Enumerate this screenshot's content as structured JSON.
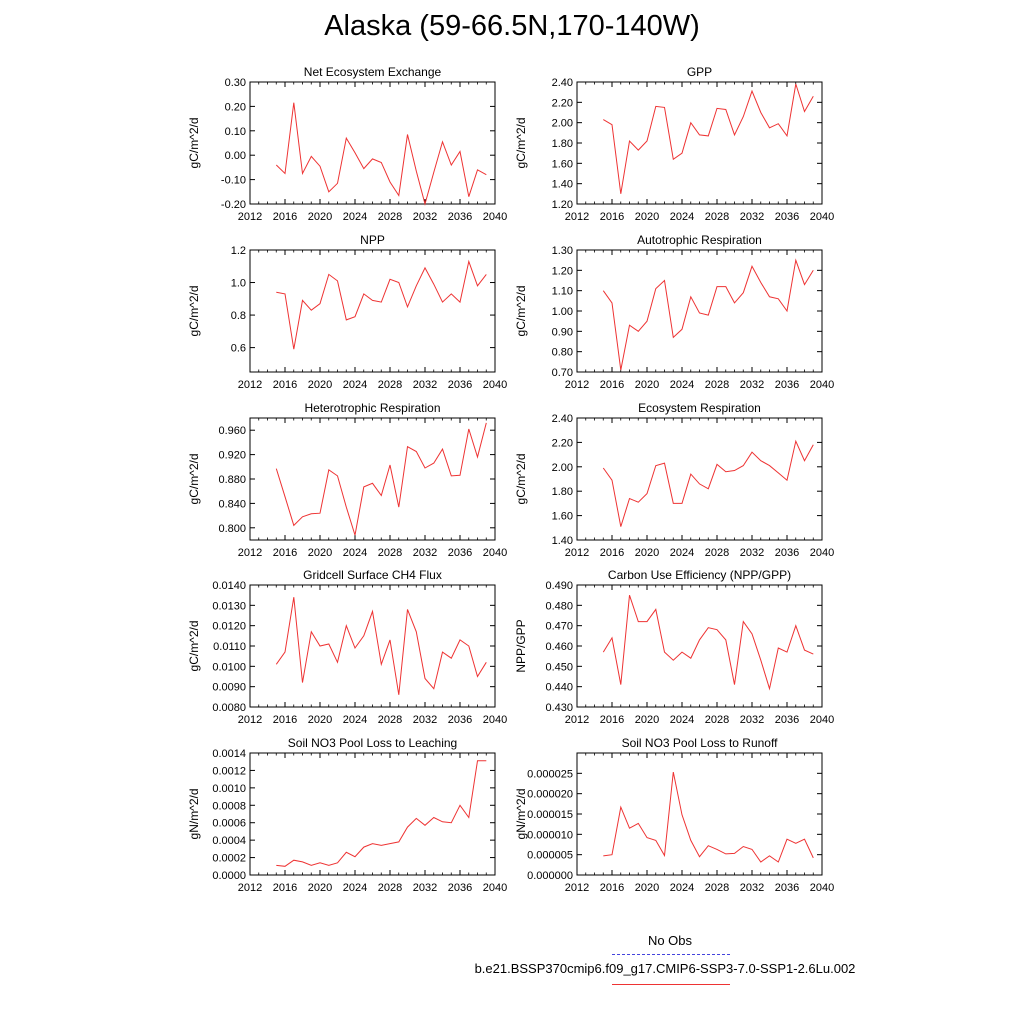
{
  "title": "Alaska (59-66.5N,170-140W)",
  "legend": {
    "obs_label": "No Obs",
    "case_label": "b.e21.BSSP370cmip6.f09_g17.CMIP6-SSP3-7.0-SSP1-2.6Lu.002",
    "obs_color": "#4444dd",
    "case_color": "#ee3333"
  },
  "chart_data": [
    {
      "type": "line",
      "title": "Net Ecosystem Exchange",
      "ylabel": "gC/m^2/d",
      "xlim": [
        2012,
        2040
      ],
      "xticks": [
        "2012",
        "2016",
        "2020",
        "2024",
        "2028",
        "2032",
        "2036",
        "2040"
      ],
      "ylim": [
        -0.2,
        0.3
      ],
      "yticks": [
        "-0.20",
        "-0.10",
        "0.00",
        "0.10",
        "0.20",
        "0.30"
      ],
      "ytick_values": [
        -0.2,
        -0.1,
        0.0,
        0.1,
        0.2,
        0.3
      ],
      "x": [
        2015,
        2016,
        2017,
        2018,
        2019,
        2020,
        2021,
        2022,
        2023,
        2024,
        2025,
        2026,
        2027,
        2028,
        2029,
        2030,
        2031,
        2032,
        2033,
        2034,
        2035,
        2036,
        2037,
        2038,
        2039
      ],
      "values": [
        -0.04,
        -0.075,
        0.215,
        -0.075,
        -0.005,
        -0.045,
        -0.15,
        -0.115,
        0.07,
        0.01,
        -0.055,
        -0.015,
        -0.03,
        -0.11,
        -0.165,
        0.085,
        -0.065,
        -0.2,
        -0.07,
        0.055,
        -0.04,
        0.015,
        -0.17,
        -0.06,
        -0.08
      ],
      "color": "#ee3333"
    },
    {
      "type": "line",
      "title": "GPP",
      "ylabel": "gC/m^2/d",
      "xlim": [
        2012,
        2040
      ],
      "xticks": [
        "2012",
        "2016",
        "2020",
        "2024",
        "2028",
        "2032",
        "2036",
        "2040"
      ],
      "ylim": [
        1.2,
        2.4
      ],
      "yticks": [
        "1.20",
        "1.40",
        "1.60",
        "1.80",
        "2.00",
        "2.20",
        "2.40"
      ],
      "ytick_values": [
        1.2,
        1.4,
        1.6,
        1.8,
        2.0,
        2.2,
        2.4
      ],
      "x": [
        2015,
        2016,
        2017,
        2018,
        2019,
        2020,
        2021,
        2022,
        2023,
        2024,
        2025,
        2026,
        2027,
        2028,
        2029,
        2030,
        2031,
        2032,
        2033,
        2034,
        2035,
        2036,
        2037,
        2038,
        2039
      ],
      "values": [
        2.03,
        1.98,
        1.3,
        1.82,
        1.73,
        1.82,
        2.16,
        2.15,
        1.64,
        1.7,
        2.0,
        1.88,
        1.87,
        2.14,
        2.13,
        1.88,
        2.06,
        2.31,
        2.1,
        1.95,
        1.99,
        1.87,
        2.38,
        2.11,
        2.26
      ],
      "color": "#ee3333"
    },
    {
      "type": "line",
      "title": "NPP",
      "ylabel": "gC/m^2/d",
      "xlim": [
        2012,
        2040
      ],
      "xticks": [
        "2012",
        "2016",
        "2020",
        "2024",
        "2028",
        "2032",
        "2036",
        "2040"
      ],
      "ylim": [
        0.45,
        1.2
      ],
      "yticks": [
        "0.6",
        "0.8",
        "1.0",
        "1.2"
      ],
      "ytick_values": [
        0.6,
        0.8,
        1.0,
        1.2
      ],
      "x": [
        2015,
        2016,
        2017,
        2018,
        2019,
        2020,
        2021,
        2022,
        2023,
        2024,
        2025,
        2026,
        2027,
        2028,
        2029,
        2030,
        2031,
        2032,
        2033,
        2034,
        2035,
        2036,
        2037,
        2038,
        2039
      ],
      "values": [
        0.94,
        0.93,
        0.59,
        0.89,
        0.83,
        0.87,
        1.05,
        1.01,
        0.77,
        0.79,
        0.93,
        0.89,
        0.88,
        1.02,
        1.0,
        0.85,
        0.98,
        1.09,
        0.99,
        0.88,
        0.93,
        0.88,
        1.13,
        0.98,
        1.05
      ],
      "color": "#ee3333"
    },
    {
      "type": "line",
      "title": "Autotrophic Respiration",
      "ylabel": "gC/m^2/d",
      "xlim": [
        2012,
        2040
      ],
      "xticks": [
        "2012",
        "2016",
        "2020",
        "2024",
        "2028",
        "2032",
        "2036",
        "2040"
      ],
      "ylim": [
        0.7,
        1.3
      ],
      "yticks": [
        "0.70",
        "0.80",
        "0.90",
        "1.00",
        "1.10",
        "1.20",
        "1.30"
      ],
      "ytick_values": [
        0.7,
        0.8,
        0.9,
        1.0,
        1.1,
        1.2,
        1.3
      ],
      "x": [
        2015,
        2016,
        2017,
        2018,
        2019,
        2020,
        2021,
        2022,
        2023,
        2024,
        2025,
        2026,
        2027,
        2028,
        2029,
        2030,
        2031,
        2032,
        2033,
        2034,
        2035,
        2036,
        2037,
        2038,
        2039
      ],
      "values": [
        1.1,
        1.04,
        0.71,
        0.93,
        0.9,
        0.95,
        1.11,
        1.15,
        0.87,
        0.91,
        1.07,
        0.99,
        0.98,
        1.12,
        1.12,
        1.04,
        1.09,
        1.22,
        1.14,
        1.07,
        1.06,
        1.0,
        1.25,
        1.13,
        1.2
      ],
      "color": "#ee3333"
    },
    {
      "type": "line",
      "title": "Heterotrophic Respiration",
      "ylabel": "gC/m^2/d",
      "xlim": [
        2012,
        2040
      ],
      "xticks": [
        "2012",
        "2016",
        "2020",
        "2024",
        "2028",
        "2032",
        "2036",
        "2040"
      ],
      "ylim": [
        0.78,
        0.98
      ],
      "yticks": [
        "0.800",
        "0.840",
        "0.880",
        "0.920",
        "0.960"
      ],
      "ytick_values": [
        0.8,
        0.84,
        0.88,
        0.92,
        0.96
      ],
      "x": [
        2015,
        2016,
        2017,
        2018,
        2019,
        2020,
        2021,
        2022,
        2023,
        2024,
        2025,
        2026,
        2027,
        2028,
        2029,
        2030,
        2031,
        2032,
        2033,
        2034,
        2035,
        2036,
        2037,
        2038,
        2039
      ],
      "values": [
        0.897,
        0.851,
        0.804,
        0.818,
        0.823,
        0.824,
        0.895,
        0.885,
        0.834,
        0.788,
        0.867,
        0.873,
        0.853,
        0.903,
        0.834,
        0.933,
        0.925,
        0.898,
        0.906,
        0.929,
        0.885,
        0.886,
        0.962,
        0.916,
        0.972
      ],
      "color": "#ee3333"
    },
    {
      "type": "line",
      "title": "Ecosystem Respiration",
      "ylabel": "gC/m^2/d",
      "xlim": [
        2012,
        2040
      ],
      "xticks": [
        "2012",
        "2016",
        "2020",
        "2024",
        "2028",
        "2032",
        "2036",
        "2040"
      ],
      "ylim": [
        1.4,
        2.4
      ],
      "yticks": [
        "1.40",
        "1.60",
        "1.80",
        "2.00",
        "2.20",
        "2.40"
      ],
      "ytick_values": [
        1.4,
        1.6,
        1.8,
        2.0,
        2.2,
        2.4
      ],
      "x": [
        2015,
        2016,
        2017,
        2018,
        2019,
        2020,
        2021,
        2022,
        2023,
        2024,
        2025,
        2026,
        2027,
        2028,
        2029,
        2030,
        2031,
        2032,
        2033,
        2034,
        2035,
        2036,
        2037,
        2038,
        2039
      ],
      "values": [
        1.99,
        1.89,
        1.51,
        1.74,
        1.71,
        1.78,
        2.01,
        2.03,
        1.7,
        1.7,
        1.94,
        1.86,
        1.82,
        2.02,
        1.96,
        1.97,
        2.01,
        2.12,
        2.05,
        2.01,
        1.95,
        1.89,
        2.21,
        2.05,
        2.18
      ],
      "color": "#ee3333"
    },
    {
      "type": "line",
      "title": "Gridcell Surface CH4 Flux",
      "ylabel": "gC/m^2/d",
      "xlim": [
        2012,
        2040
      ],
      "xticks": [
        "2012",
        "2016",
        "2020",
        "2024",
        "2028",
        "2032",
        "2036",
        "2040"
      ],
      "ylim": [
        0.008,
        0.014
      ],
      "yticks": [
        "0.0080",
        "0.0090",
        "0.0100",
        "0.0110",
        "0.0120",
        "0.0130",
        "0.0140"
      ],
      "ytick_values": [
        0.008,
        0.009,
        0.01,
        0.011,
        0.012,
        0.013,
        0.014
      ],
      "x": [
        2015,
        2016,
        2017,
        2018,
        2019,
        2020,
        2021,
        2022,
        2023,
        2024,
        2025,
        2026,
        2027,
        2028,
        2029,
        2030,
        2031,
        2032,
        2033,
        2034,
        2035,
        2036,
        2037,
        2038,
        2039
      ],
      "values": [
        0.0101,
        0.0107,
        0.0134,
        0.0092,
        0.0117,
        0.011,
        0.0111,
        0.0102,
        0.012,
        0.0109,
        0.0115,
        0.0127,
        0.0101,
        0.0113,
        0.0086,
        0.0128,
        0.0117,
        0.0094,
        0.0089,
        0.0107,
        0.0104,
        0.0113,
        0.011,
        0.0095,
        0.0102
      ],
      "color": "#ee3333"
    },
    {
      "type": "line",
      "title": "Carbon Use Efficiency (NPP/GPP)",
      "ylabel": "NPP/GPP",
      "xlim": [
        2012,
        2040
      ],
      "xticks": [
        "2012",
        "2016",
        "2020",
        "2024",
        "2028",
        "2032",
        "2036",
        "2040"
      ],
      "ylim": [
        0.43,
        0.49
      ],
      "yticks": [
        "0.430",
        "0.440",
        "0.450",
        "0.460",
        "0.470",
        "0.480",
        "0.490"
      ],
      "ytick_values": [
        0.43,
        0.44,
        0.45,
        0.46,
        0.47,
        0.48,
        0.49
      ],
      "x": [
        2015,
        2016,
        2017,
        2018,
        2019,
        2020,
        2021,
        2022,
        2023,
        2024,
        2025,
        2026,
        2027,
        2028,
        2029,
        2030,
        2031,
        2032,
        2033,
        2034,
        2035,
        2036,
        2037,
        2038,
        2039
      ],
      "values": [
        0.457,
        0.464,
        0.441,
        0.485,
        0.472,
        0.472,
        0.478,
        0.457,
        0.453,
        0.457,
        0.454,
        0.463,
        0.469,
        0.468,
        0.463,
        0.441,
        0.472,
        0.466,
        0.453,
        0.439,
        0.459,
        0.457,
        0.47,
        0.458,
        0.456
      ],
      "color": "#ee3333"
    },
    {
      "type": "line",
      "title": "Soil NO3 Pool Loss to Leaching",
      "ylabel": "gN/m^2/d",
      "xlim": [
        2012,
        2040
      ],
      "xticks": [
        "2012",
        "2016",
        "2020",
        "2024",
        "2028",
        "2032",
        "2036",
        "2040"
      ],
      "ylim": [
        0,
        0.0014
      ],
      "yticks": [
        "0.0000",
        "0.0002",
        "0.0004",
        "0.0006",
        "0.0008",
        "0.0010",
        "0.0012",
        "0.0014"
      ],
      "ytick_values": [
        0,
        0.0002,
        0.0004,
        0.0006,
        0.0008,
        0.001,
        0.0012,
        0.0014
      ],
      "x": [
        2015,
        2016,
        2017,
        2018,
        2019,
        2020,
        2021,
        2022,
        2023,
        2024,
        2025,
        2026,
        2027,
        2028,
        2029,
        2030,
        2031,
        2032,
        2033,
        2034,
        2035,
        2036,
        2037,
        2038,
        2039
      ],
      "values": [
        0.00011,
        0.0001,
        0.00017,
        0.00015,
        0.00011,
        0.00014,
        0.00011,
        0.00014,
        0.00026,
        0.00021,
        0.00032,
        0.00036,
        0.00034,
        0.00036,
        0.00038,
        0.00055,
        0.00065,
        0.00057,
        0.00066,
        0.00061,
        0.0006,
        0.0008,
        0.00066,
        0.00131,
        0.00131
      ],
      "color": "#ee3333"
    },
    {
      "type": "line",
      "title": "Soil NO3 Pool Loss to Runoff",
      "ylabel": "gN/m^2/d",
      "xlim": [
        2012,
        2040
      ],
      "xticks": [
        "2012",
        "2016",
        "2020",
        "2024",
        "2028",
        "2032",
        "2036",
        "2040"
      ],
      "ylim": [
        0,
        3e-05
      ],
      "yticks": [
        "0.000000",
        "0.000005",
        "0.000010",
        "0.000015",
        "0.000020",
        "0.000025"
      ],
      "ytick_values": [
        0,
        5e-06,
        1e-05,
        1.5e-05,
        2e-05,
        2.5e-05
      ],
      "x": [
        2015,
        2016,
        2017,
        2018,
        2019,
        2020,
        2021,
        2022,
        2023,
        2024,
        2025,
        2026,
        2027,
        2028,
        2029,
        2030,
        2031,
        2032,
        2033,
        2034,
        2035,
        2036,
        2037,
        2038,
        2039
      ],
      "values": [
        4.7e-06,
        5e-06,
        1.67e-05,
        1.15e-05,
        1.27e-05,
        9.2e-06,
        8.5e-06,
        4.8e-06,
        2.53e-05,
        1.48e-05,
        8.5e-06,
        4.5e-06,
        7.2e-06,
        6.3e-06,
        5.2e-06,
        5.3e-06,
        7e-06,
        6.3e-06,
        3.2e-06,
        4.7e-06,
        3.2e-06,
        8.8e-06,
        7.8e-06,
        8.8e-06,
        4.2e-06
      ],
      "color": "#ee3333"
    }
  ]
}
